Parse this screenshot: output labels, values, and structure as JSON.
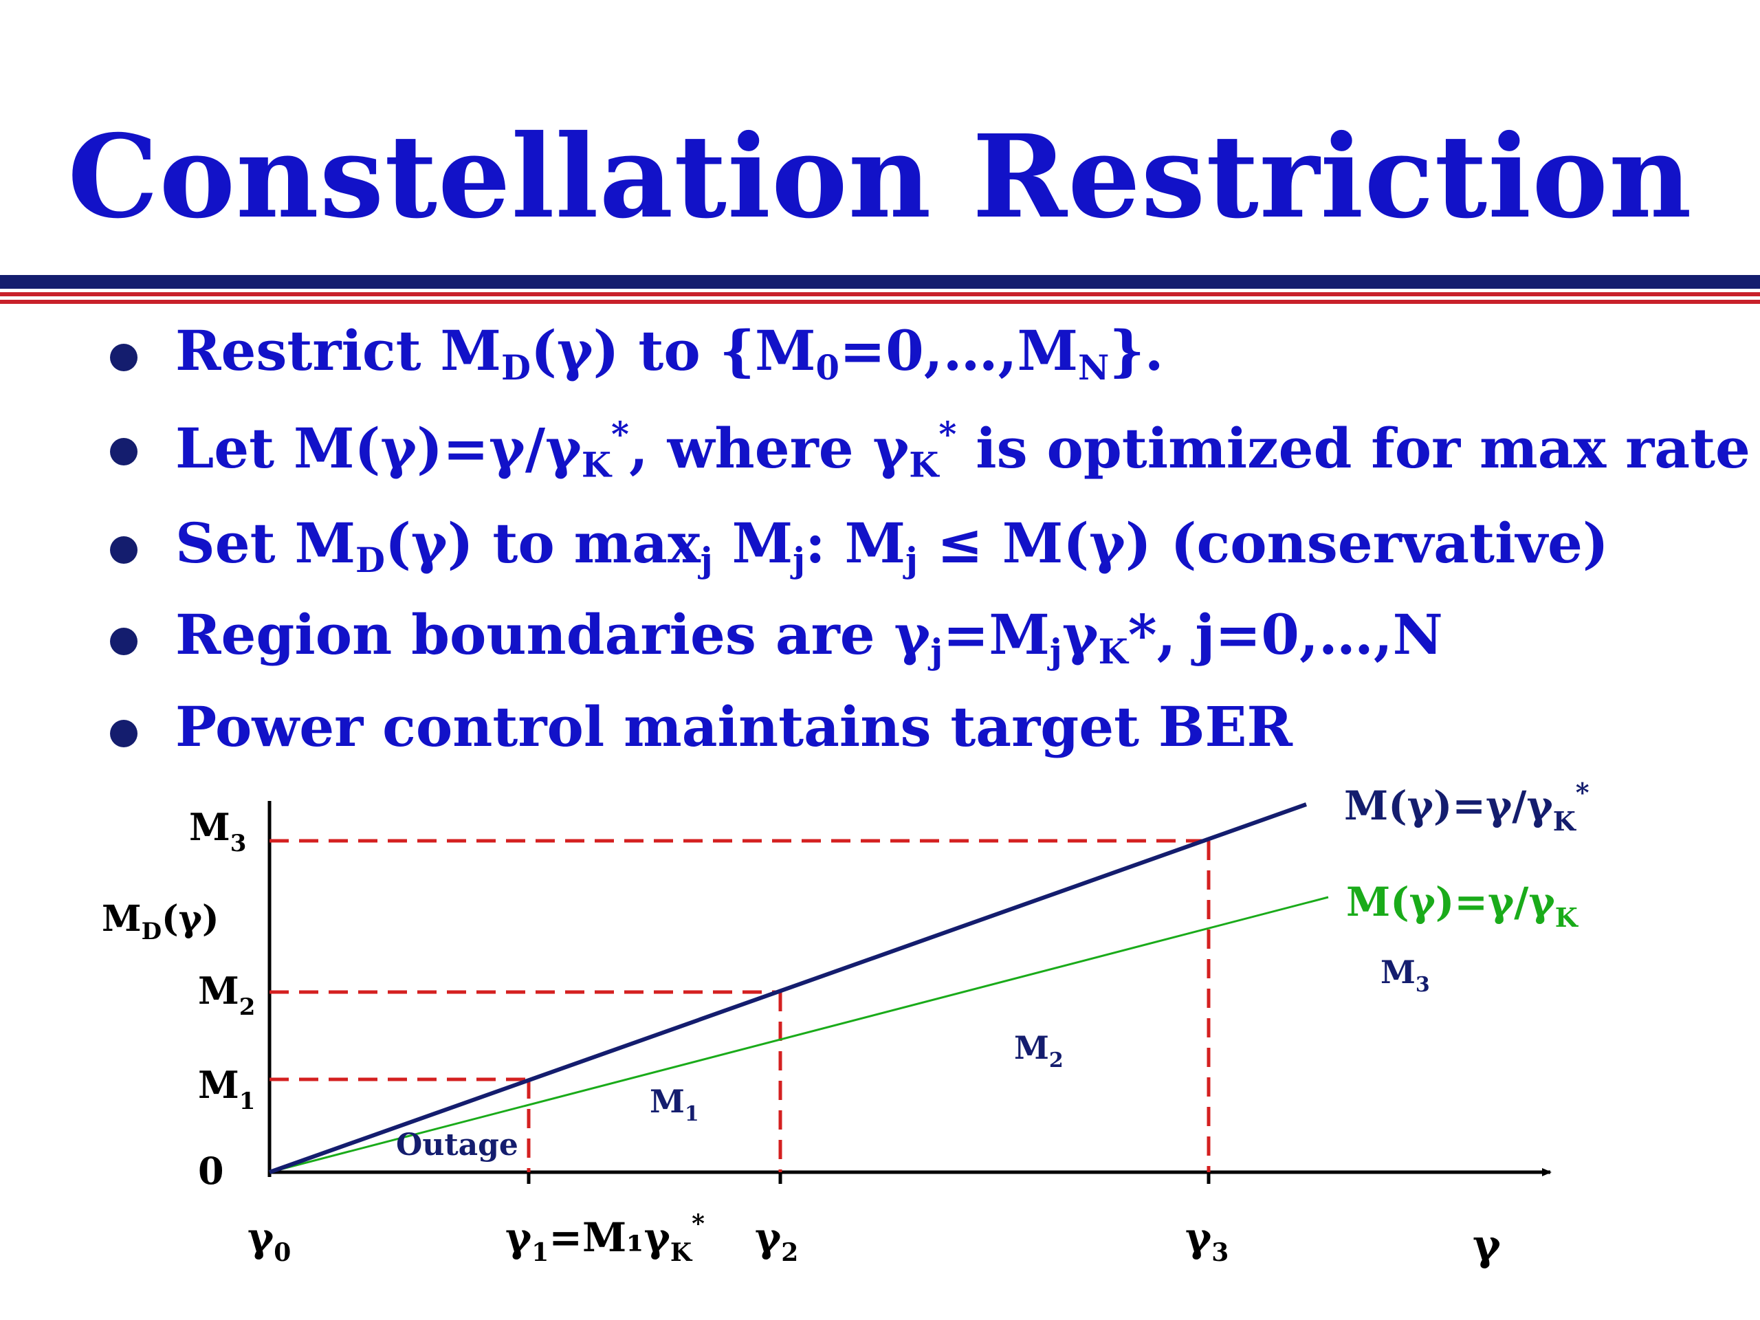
{
  "slide": {
    "title": "Constellation Restriction",
    "colors": {
      "title": "#1212c8",
      "rule_navy": "#141d6e",
      "rule_red": "#c8202a"
    }
  },
  "bullets": [
    {
      "pre": "Restrict M",
      "s1": "D",
      "mid": "(γ) to {M",
      "s2": "0",
      "post": "=0,…,M",
      "s3": "N",
      "end": "}."
    },
    {
      "a": "Let M(γ)=γ/γ",
      "b": "K",
      "c": "*",
      "d": ", where γ",
      "e": "K",
      "f": "*",
      "g": " is optimized for max rate"
    },
    {
      "a": "Set M",
      "b": "D",
      "c": "(γ) to max",
      "d": "j",
      "e": " M",
      "f": "j",
      "g": ": M",
      "h": "j",
      "i": " ≤ M(γ) (conservative)"
    },
    {
      "a": "Region boundaries are γ",
      "b": "j",
      "c": "=M",
      "d": "j",
      "e": "γ",
      "f": "K",
      "g": "*, j=0,…,N"
    },
    {
      "a": "Power control maintains target BER"
    }
  ],
  "diagram": {
    "y_axis_title": {
      "main": "M",
      "sub": "D",
      "tail": "(γ)"
    },
    "y_ticks": [
      {
        "main": "M",
        "sub": "3"
      },
      {
        "main": "M",
        "sub": "2"
      },
      {
        "main": "M",
        "sub": "1"
      },
      {
        "main": "0",
        "sub": ""
      }
    ],
    "x_ticks": [
      {
        "main": "γ",
        "sub": "0",
        "rest": ""
      },
      {
        "main": "γ",
        "sub": "1",
        "rest": "=M₁γ",
        "sub2": "K",
        "sup": "*"
      },
      {
        "main": "γ",
        "sub": "2",
        "rest": ""
      },
      {
        "main": "γ",
        "sub": "3",
        "rest": ""
      }
    ],
    "x_axis_title": "γ",
    "line_opt": {
      "main": "M(γ)=γ/γ",
      "sub": "K",
      "sup": "*",
      "color": "#141d6e"
    },
    "line_k": {
      "main": "M(γ)=γ/γ",
      "sub": "K",
      "color": "#1aab1a"
    },
    "boundary_color": "#d42020",
    "regions": [
      {
        "main": "Outage",
        "sub": ""
      },
      {
        "main": "M",
        "sub": "1"
      },
      {
        "main": "M",
        "sub": "2"
      },
      {
        "main": "M",
        "sub": "3"
      }
    ]
  }
}
